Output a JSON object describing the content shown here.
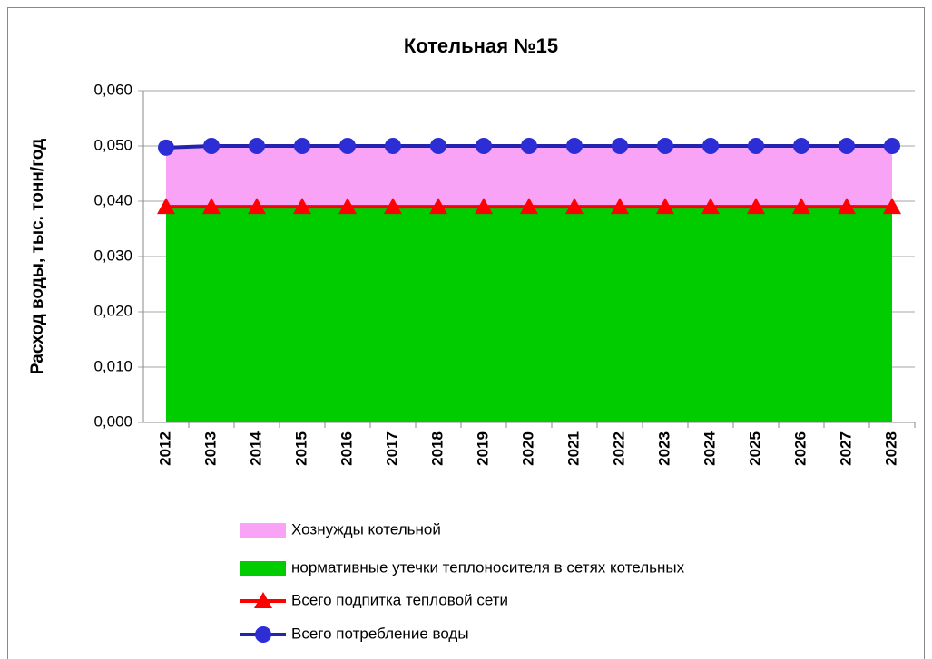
{
  "chart_data": {
    "type": "combo",
    "title": "Котельная №15",
    "y_label": "Расход воды, тыс. тонн/год",
    "categories": [
      "2012",
      "2013",
      "2014",
      "2015",
      "2016",
      "2017",
      "2018",
      "2019",
      "2020",
      "2021",
      "2022",
      "2023",
      "2024",
      "2025",
      "2026",
      "2027",
      "2028"
    ],
    "ylim": [
      0,
      0.06
    ],
    "yticks": [
      {
        "value": 0,
        "label": "0,000"
      },
      {
        "value": 0.01,
        "label": "0,010"
      },
      {
        "value": 0.02,
        "label": "0,020"
      },
      {
        "value": 0.03,
        "label": "0,030"
      },
      {
        "value": 0.04,
        "label": "0,040"
      },
      {
        "value": 0.05,
        "label": "0,050"
      },
      {
        "value": 0.06,
        "label": "0,060"
      }
    ],
    "grid": true,
    "series": [
      {
        "name": "нормативные утечки теплоносителя в сетях котельных",
        "type": "area",
        "color": "#00cc00",
        "values": [
          0.039,
          0.039,
          0.039,
          0.039,
          0.039,
          0.039,
          0.039,
          0.039,
          0.039,
          0.039,
          0.039,
          0.039,
          0.039,
          0.039,
          0.039,
          0.039,
          0.039
        ]
      },
      {
        "name": "Хознужды котельной",
        "type": "area",
        "color": "#f9a3f7",
        "values": [
          0.011,
          0.011,
          0.011,
          0.011,
          0.011,
          0.011,
          0.011,
          0.011,
          0.011,
          0.011,
          0.011,
          0.011,
          0.011,
          0.011,
          0.011,
          0.011,
          0.011
        ]
      },
      {
        "name": "Всего подпитка тепловой сети",
        "type": "line",
        "marker": "triangle",
        "color": "#ff0000",
        "values": [
          0.039,
          0.039,
          0.039,
          0.039,
          0.039,
          0.039,
          0.039,
          0.039,
          0.039,
          0.039,
          0.039,
          0.039,
          0.039,
          0.039,
          0.039,
          0.039,
          0.039
        ]
      },
      {
        "name": "Всего потребление воды",
        "type": "line",
        "marker": "circle",
        "color": "#2323b0",
        "values": [
          0.0497,
          0.05,
          0.05,
          0.05,
          0.05,
          0.05,
          0.05,
          0.05,
          0.05,
          0.05,
          0.05,
          0.05,
          0.05,
          0.05,
          0.05,
          0.05,
          0.05
        ]
      }
    ],
    "legend_order": [
      1,
      0,
      2,
      3
    ]
  }
}
